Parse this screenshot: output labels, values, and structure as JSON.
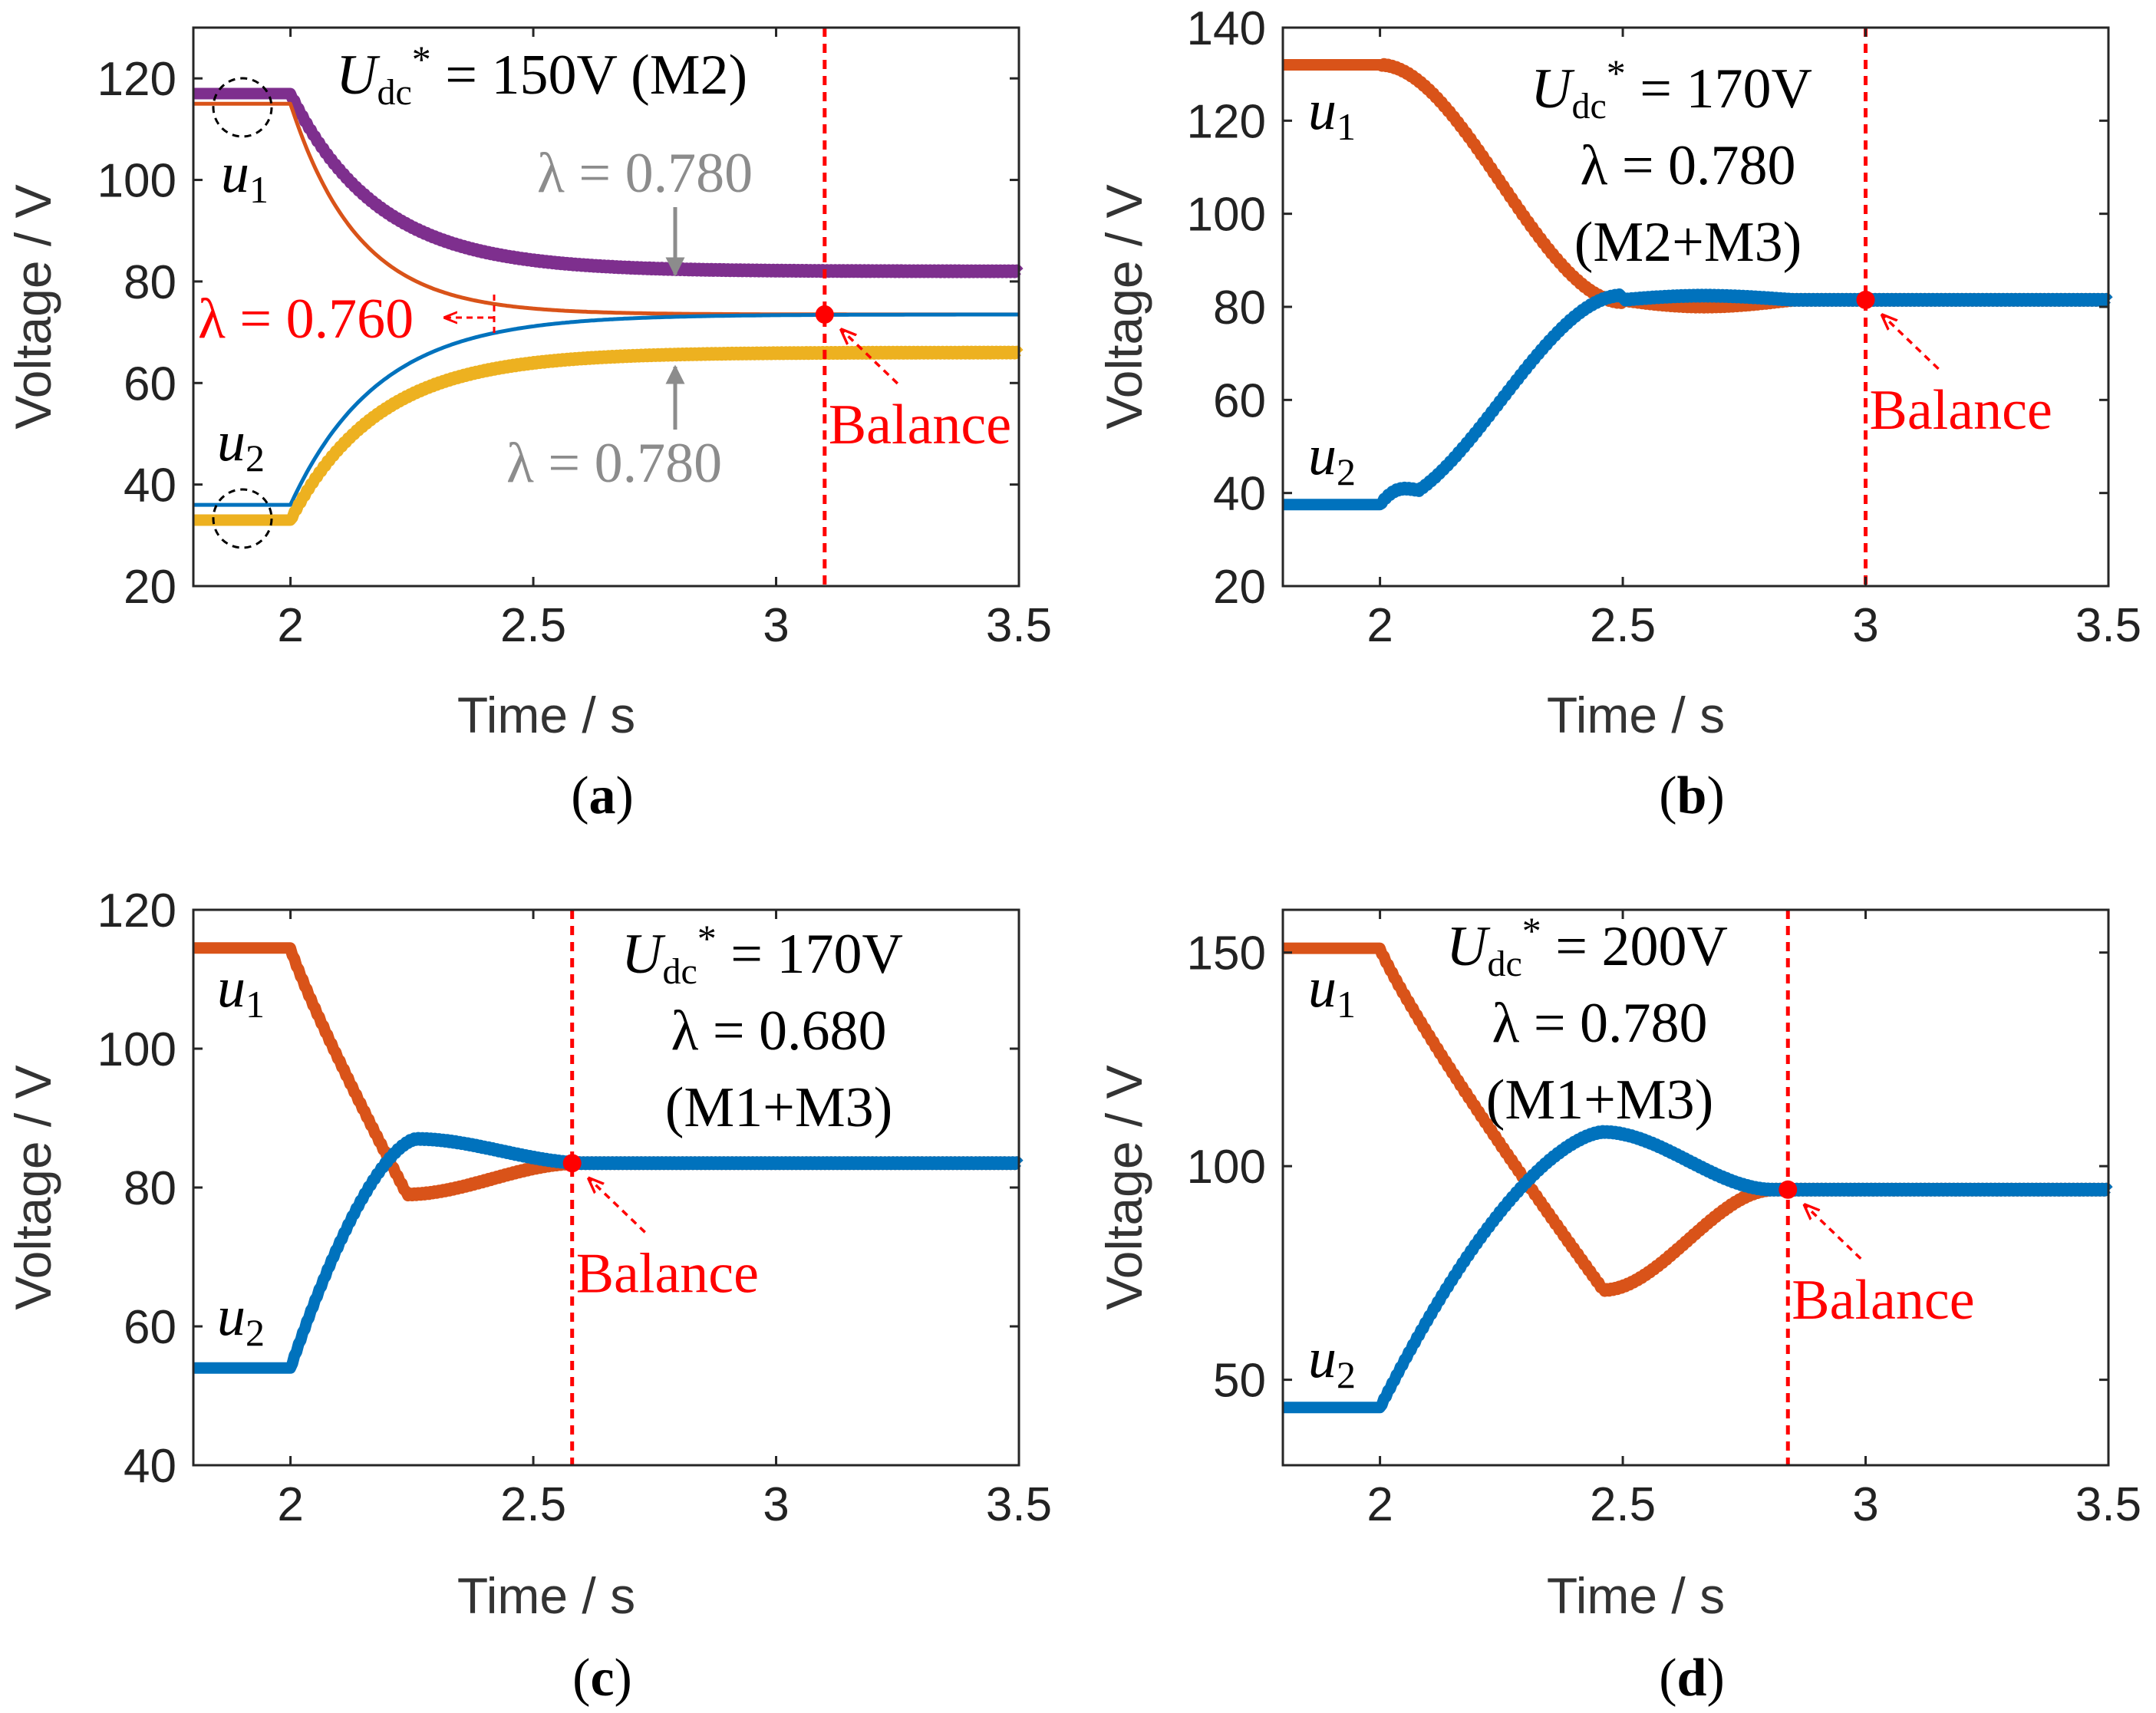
{
  "figure": {
    "colors": {
      "u1": "#d95319",
      "u2": "#0072bd",
      "purple": "#7e2f8e",
      "yellow": "#edb120",
      "balance": "#ff0000",
      "gray": "#8c8c8c",
      "axis": "#262626"
    }
  },
  "chart_data": [
    {
      "id": "a",
      "type": "line",
      "caption": {
        "open": "(",
        "letter": "a",
        "close": ")"
      },
      "xlabel": "Time / s",
      "ylabel": "Voltage / V",
      "xlim": [
        1.8,
        3.5
      ],
      "ylim": [
        20,
        130
      ],
      "xticks": [
        "2",
        "2.5",
        "3",
        "3.5"
      ],
      "xtick_values": [
        2,
        2.5,
        3,
        3.5
      ],
      "yticks": [
        "20",
        "40",
        "60",
        "80",
        "100",
        "120"
      ],
      "ytick_values": [
        20,
        40,
        60,
        80,
        100,
        120
      ],
      "grid": false,
      "series": [
        {
          "name": "u1 (λ = 0.780)",
          "color": "purple",
          "thick": true,
          "step_time": 2.0,
          "initial": 117,
          "final": 82,
          "tau": 0.18
        },
        {
          "name": "u1 (λ = 0.760)",
          "color": "u1",
          "thick": false,
          "step_time": 2.0,
          "initial": 115,
          "final": 73.5,
          "tau": 0.14
        },
        {
          "name": "u2 (λ = 0.760)",
          "color": "u2",
          "thick": false,
          "step_time": 2.0,
          "initial": 36,
          "final": 73.5,
          "tau": 0.18
        },
        {
          "name": "u2 (λ = 0.780)",
          "color": "yellow",
          "thick": true,
          "step_time": 2.0,
          "initial": 33,
          "final": 66,
          "tau": 0.18
        }
      ],
      "balance": {
        "time": 3.1,
        "voltage": 73.5,
        "label": "Balance"
      },
      "text": {
        "u1": {
          "base": "u",
          "sub": "1"
        },
        "u2": {
          "base": "u",
          "sub": "2"
        },
        "udc": {
          "base": "U",
          "sub": "dc",
          "sup": "*",
          "rest": " = 150V (M2)"
        },
        "lambda_upper": "λ = 0.780",
        "lambda_lower": "λ = 0.780",
        "lambda_red": "λ = 0.760"
      }
    },
    {
      "id": "b",
      "type": "line",
      "caption": {
        "open": "(",
        "letter": "b",
        "close": ")"
      },
      "xlabel": "Time / s",
      "ylabel": "Voltage / V",
      "xlim": [
        1.8,
        3.5
      ],
      "ylim": [
        20,
        140
      ],
      "xticks": [
        "2",
        "2.5",
        "3",
        "3.5"
      ],
      "xtick_values": [
        2,
        2.5,
        3,
        3.5
      ],
      "yticks": [
        "20",
        "40",
        "60",
        "80",
        "100",
        "120",
        "140"
      ],
      "ytick_values": [
        20,
        40,
        60,
        80,
        100,
        120,
        140
      ],
      "grid": false,
      "series": [
        {
          "name": "u1",
          "color": "u1",
          "thick": true,
          "initial": 132,
          "final": 81.5,
          "peak_time": 2.5,
          "peak": 81.0
        },
        {
          "name": "u2",
          "color": "u2",
          "thick": true,
          "initial": 37.5,
          "final": 81.5,
          "peak_time": 2.55,
          "peak": 82.5
        }
      ],
      "balance": {
        "time": 3.0,
        "voltage": 81.5,
        "label": "Balance"
      },
      "text": {
        "u1": {
          "base": "u",
          "sub": "1"
        },
        "u2": {
          "base": "u",
          "sub": "2"
        },
        "udc": {
          "base": "U",
          "sub": "dc",
          "sup": "*",
          "rest": " = 170V"
        },
        "lambda": "λ = 0.780",
        "mode": "(M2+M3)"
      }
    },
    {
      "id": "c",
      "type": "line",
      "caption": {
        "open": "(",
        "letter": "c",
        "close": ")"
      },
      "xlabel": "Time / s",
      "ylabel": "Voltage / V",
      "xlim": [
        1.8,
        3.5
      ],
      "ylim": [
        40,
        120
      ],
      "xticks": [
        "2",
        "2.5",
        "3",
        "3.5"
      ],
      "xtick_values": [
        2,
        2.5,
        3,
        3.5
      ],
      "yticks": [
        "40",
        "60",
        "80",
        "100",
        "120"
      ],
      "ytick_values": [
        40,
        60,
        80,
        100,
        120
      ],
      "grid": false,
      "series": [
        {
          "name": "u1",
          "color": "u1",
          "thick": true,
          "initial": 114.5,
          "final": 83.5,
          "extreme_time": 2.24,
          "extreme": 79
        },
        {
          "name": "u2",
          "color": "u2",
          "thick": true,
          "initial": 54,
          "final": 83.5,
          "extreme_time": 2.26,
          "extreme": 87
        }
      ],
      "balance": {
        "time": 2.58,
        "voltage": 83.5,
        "label": "Balance"
      },
      "text": {
        "u1": {
          "base": "u",
          "sub": "1"
        },
        "u2": {
          "base": "u",
          "sub": "2"
        },
        "udc": {
          "base": "U",
          "sub": "dc",
          "sup": "*",
          "rest": " = 170V"
        },
        "lambda": "λ = 0.680",
        "mode": "(M1+M3)"
      }
    },
    {
      "id": "d",
      "type": "line",
      "caption": {
        "open": "(",
        "letter": "d",
        "close": ")"
      },
      "xlabel": "Time / s",
      "ylabel": "Voltage / V",
      "xlim": [
        1.8,
        3.5
      ],
      "ylim": [
        30,
        160
      ],
      "xticks": [
        "2",
        "2.5",
        "3",
        "3.5"
      ],
      "xtick_values": [
        2,
        2.5,
        3,
        3.5
      ],
      "yticks": [
        "50",
        "100",
        "150"
      ],
      "ytick_values": [
        50,
        100,
        150
      ],
      "grid": false,
      "series": [
        {
          "name": "u1",
          "color": "u1",
          "thick": true,
          "initial": 151,
          "final": 94.5,
          "extreme_time": 2.46,
          "extreme": 71
        },
        {
          "name": "u2",
          "color": "u2",
          "thick": true,
          "initial": 43.5,
          "final": 94.5,
          "extreme_time": 2.46,
          "extreme": 108
        }
      ],
      "balance": {
        "time": 2.84,
        "voltage": 94.5,
        "label": "Balance"
      },
      "text": {
        "u1": {
          "base": "u",
          "sub": "1"
        },
        "u2": {
          "base": "u",
          "sub": "2"
        },
        "udc": {
          "base": "U",
          "sub": "dc",
          "sup": "*",
          "rest": " = 200V"
        },
        "lambda": "λ = 0.780",
        "mode": "(M1+M3)"
      }
    }
  ]
}
